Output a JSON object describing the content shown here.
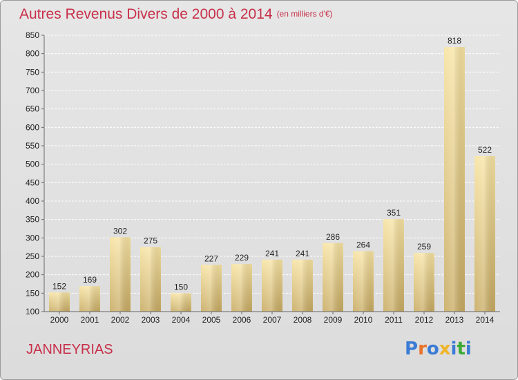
{
  "title": "Autres Revenus Divers de 2000 à 2014",
  "subtitle": "(en milliers d'€)",
  "commune": "JANNEYRIAS",
  "logo": {
    "text": "Proxiti",
    "colors": [
      "#3a7bd5",
      "#e8732a",
      "#3a7bd5",
      "#f0b429",
      "#3a7bd5",
      "#3aaa35",
      "#3a7bd5"
    ]
  },
  "chart_data": {
    "type": "bar",
    "categories": [
      "2000",
      "2001",
      "2002",
      "2003",
      "2004",
      "2005",
      "2006",
      "2007",
      "2008",
      "2009",
      "2010",
      "2011",
      "2012",
      "2013",
      "2014"
    ],
    "values": [
      152,
      169,
      302,
      275,
      150,
      227,
      229,
      241,
      241,
      286,
      264,
      351,
      259,
      818,
      522
    ],
    "ylim": [
      100,
      850
    ],
    "yticks": [
      100,
      150,
      200,
      250,
      300,
      350,
      400,
      450,
      500,
      550,
      600,
      650,
      700,
      750,
      800,
      850
    ],
    "grid": true,
    "bar_color": "#f2d78e",
    "accent_color": "#c8304a"
  }
}
